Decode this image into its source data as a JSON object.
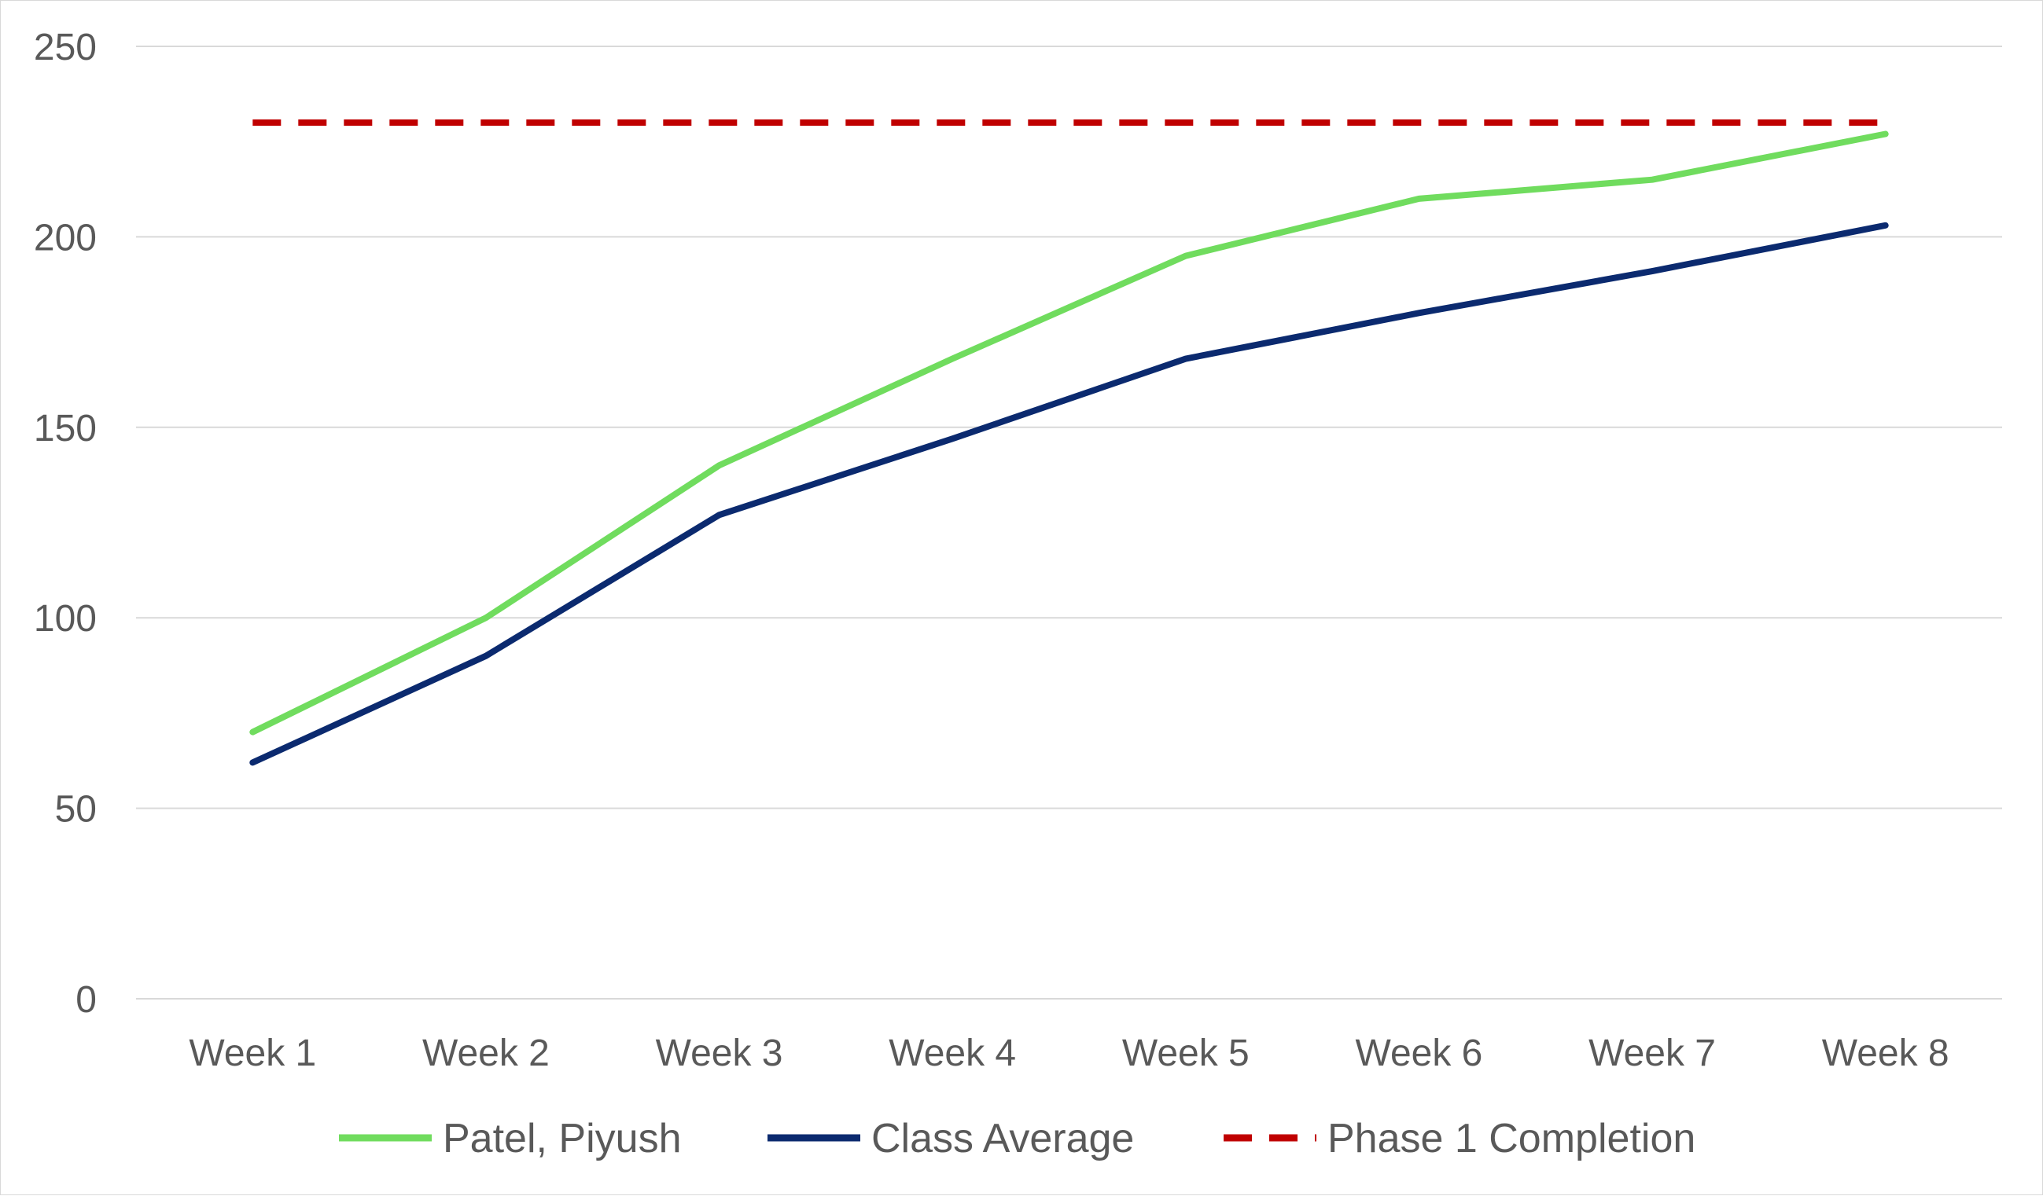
{
  "chart_data": {
    "type": "line",
    "title": "",
    "xlabel": "",
    "ylabel": "",
    "categories": [
      "Week 1",
      "Week 2",
      "Week 3",
      "Week 4",
      "Week 5",
      "Week 6",
      "Week 7",
      "Week 8"
    ],
    "ylim": [
      0,
      250
    ],
    "yticks": [
      0,
      50,
      100,
      150,
      200,
      250
    ],
    "y_tick_labels": [
      "0",
      "50",
      "100",
      "150",
      "200",
      "250"
    ],
    "grid": true,
    "legend_position": "bottom",
    "series": [
      {
        "name": "Patel, Piyush",
        "values": [
          70,
          100,
          140,
          168,
          195,
          210,
          215,
          227
        ],
        "color": "#70dc5e",
        "style": "solid"
      },
      {
        "name": "Class Average",
        "values": [
          62,
          90,
          127,
          147,
          168,
          180,
          191,
          203
        ],
        "color": "#0b2a6f",
        "style": "solid"
      },
      {
        "name": "Phase 1 Completion",
        "values": [
          230,
          230,
          230,
          230,
          230,
          230,
          230,
          230
        ],
        "color": "#c00000",
        "style": "dashed"
      }
    ]
  }
}
